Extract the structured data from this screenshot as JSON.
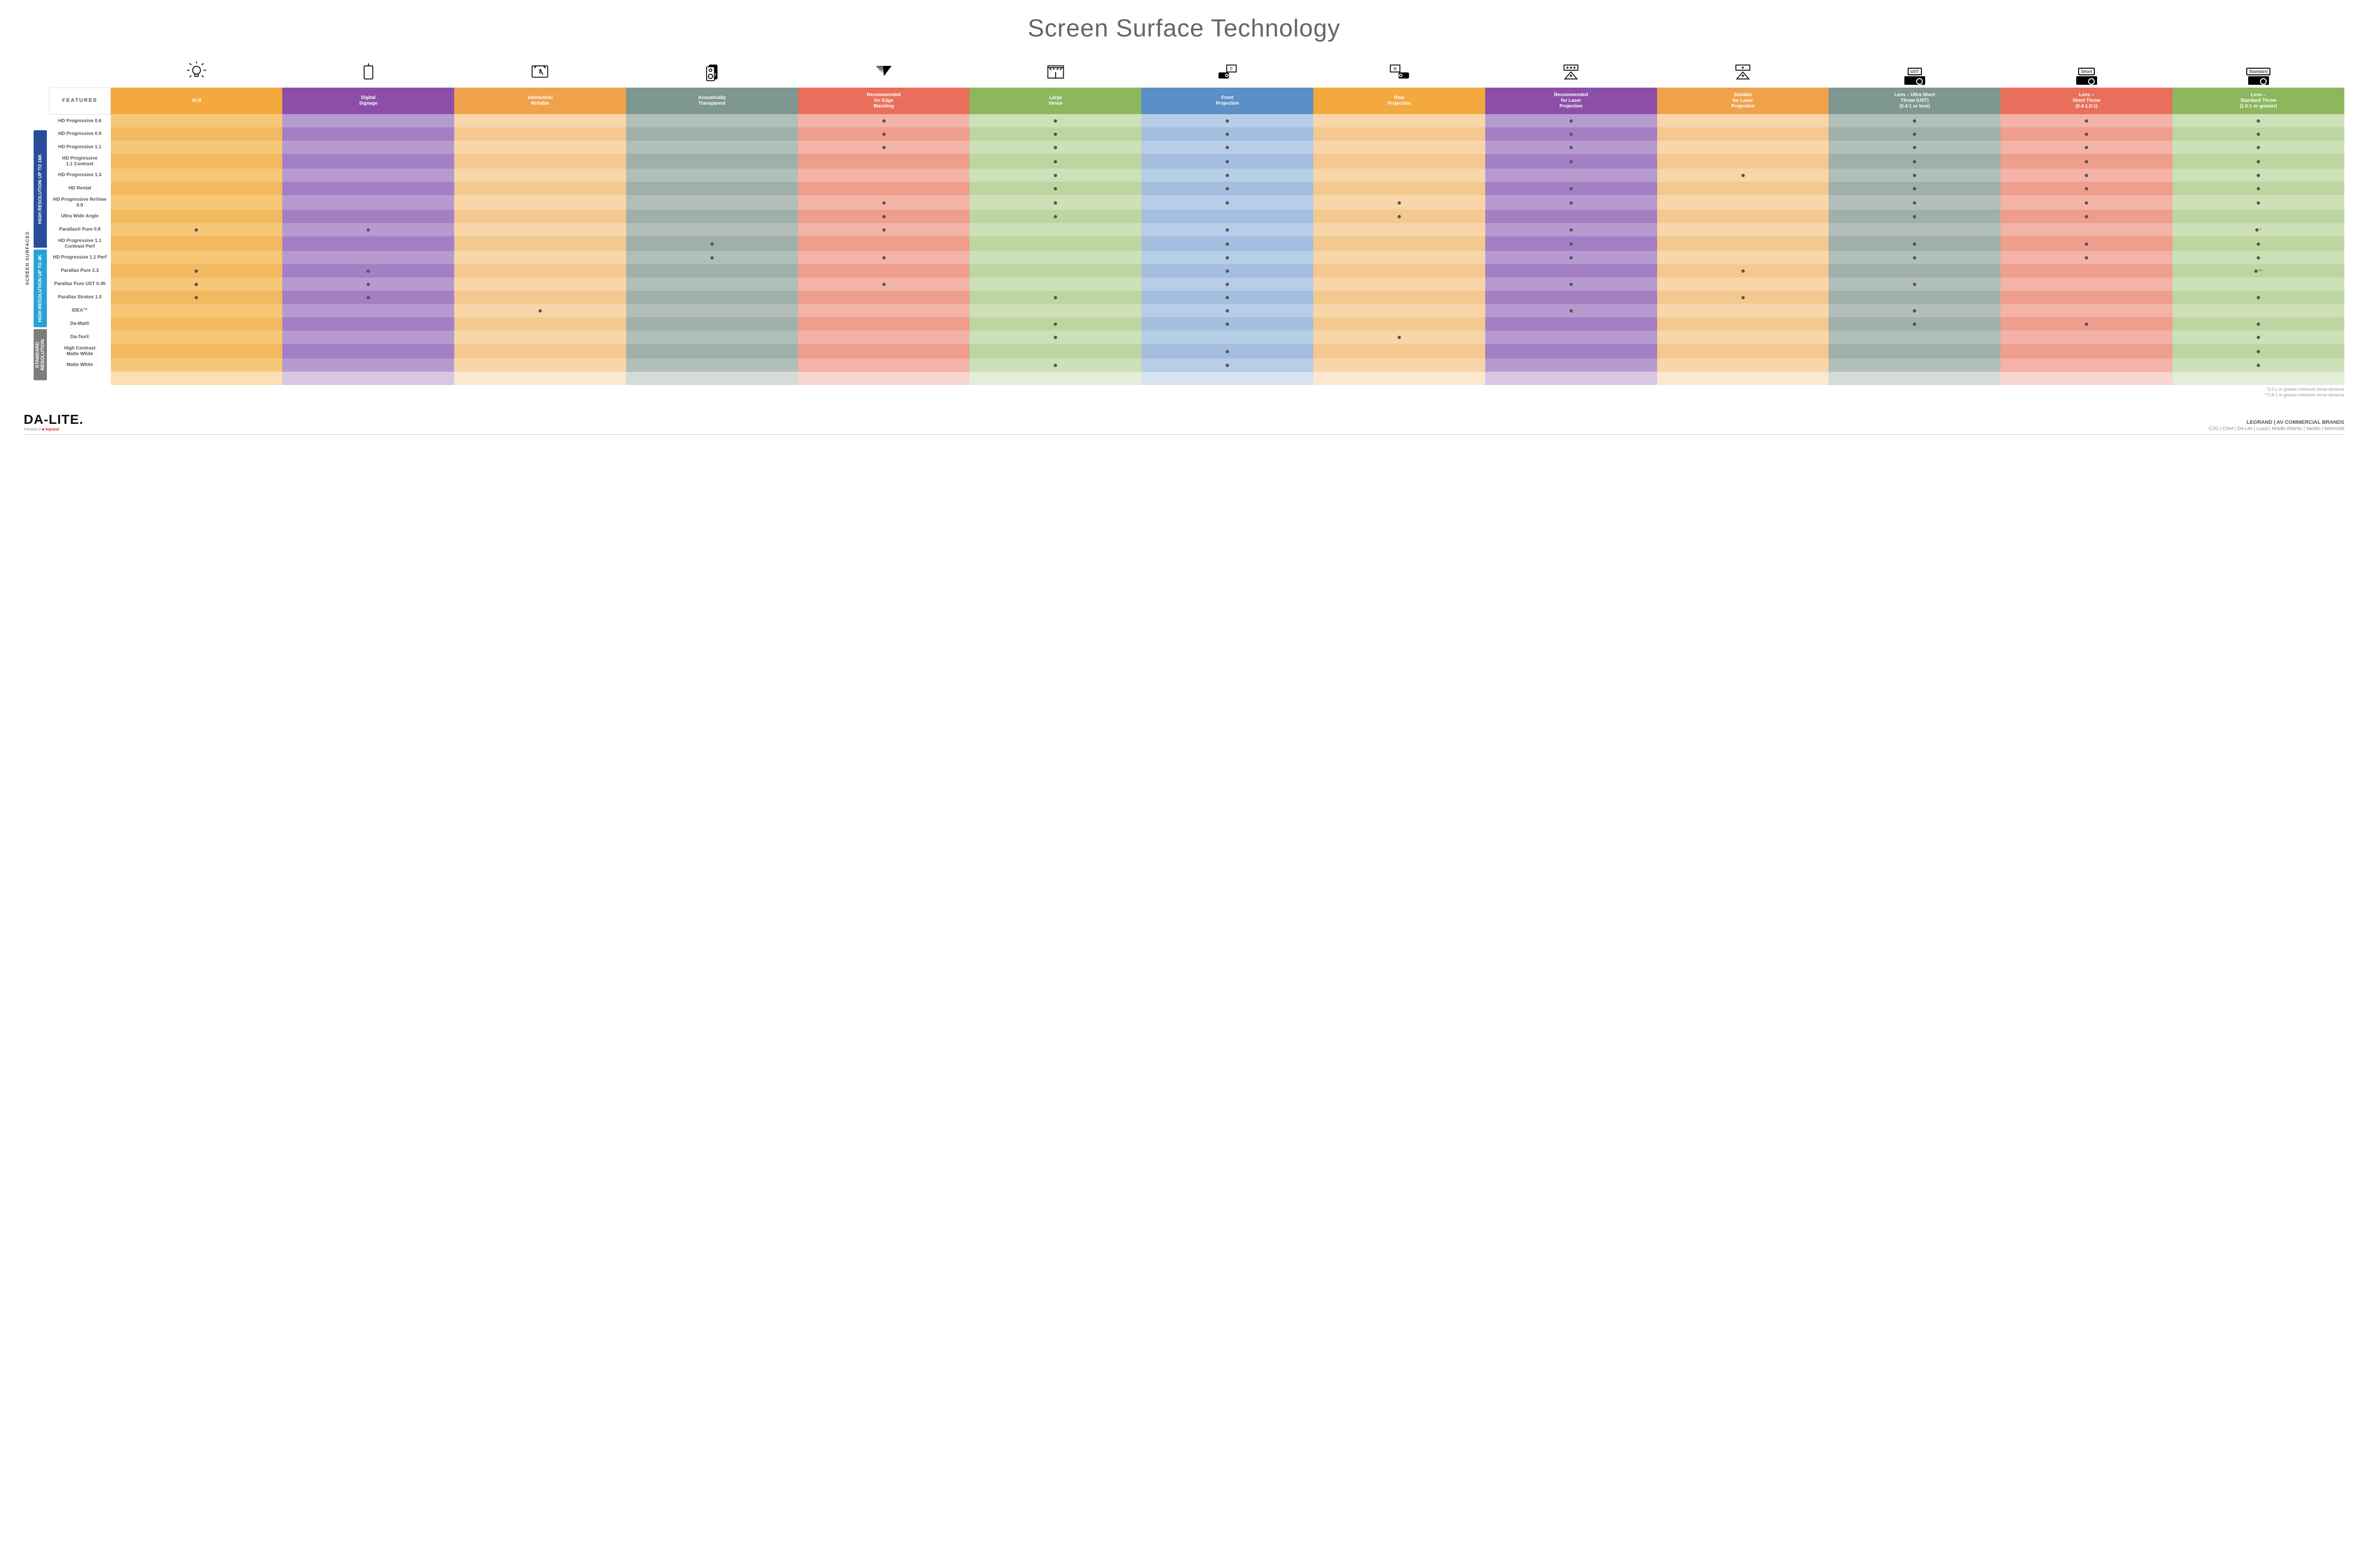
{
  "title": "Screen Surface Technology",
  "columns": [
    {
      "key": "alr",
      "label": "ALR",
      "colors": [
        "#f7c778",
        "#f3b95e"
      ],
      "header": "#f3a93e",
      "icon": "bulb"
    },
    {
      "key": "signage",
      "label": "Digital\nSignage",
      "colors": [
        "#b79bd0",
        "#a47fc4"
      ],
      "header": "#8c4fa7",
      "icon": "signage"
    },
    {
      "key": "writable",
      "label": "Interactive/\nWritable",
      "colors": [
        "#f8d6a9",
        "#f4c98f"
      ],
      "header": "#f0a24a",
      "icon": "touch"
    },
    {
      "key": "acoustic",
      "label": "Acoustically\nTransparent",
      "colors": [
        "#b2beb9",
        "#9fb0a9"
      ],
      "header": "#7e9790",
      "icon": "speaker"
    },
    {
      "key": "edge",
      "label": "Recommended\nfor Edge\nBlending",
      "colors": [
        "#f3b3a7",
        "#ef9d8d"
      ],
      "header": "#e96f5c",
      "icon": "blend"
    },
    {
      "key": "large",
      "label": "Large\nVenue",
      "colors": [
        "#cde0b7",
        "#bdd6a1"
      ],
      "header": "#8cb75d",
      "icon": "venue"
    },
    {
      "key": "front",
      "label": "Front\nProjection",
      "colors": [
        "#b8cde7",
        "#a3bedf"
      ],
      "header": "#5a8fc7",
      "icon": "front"
    },
    {
      "key": "rear",
      "label": "Rear\nProjection",
      "colors": [
        "#f8d6a9",
        "#f4c98f"
      ],
      "header": "#f3a93e",
      "icon": "rear"
    },
    {
      "key": "reclaser",
      "label": "Recommended\nfor Laser\nProjection",
      "colors": [
        "#b79bd0",
        "#a47fc4"
      ],
      "header": "#8c4fa7",
      "icon": "laser3"
    },
    {
      "key": "suitlaser",
      "label": "Suitable\nfor Laser\nProjection",
      "colors": [
        "#f8d6a9",
        "#f4c98f"
      ],
      "header": "#f0a24a",
      "icon": "laser1"
    },
    {
      "key": "ust",
      "label": "Lens – Ultra Short\nThrow (UST)\n(0.4:1 or less)",
      "colors": [
        "#b2beb9",
        "#9fb0a9"
      ],
      "header": "#7e9790",
      "icon": "proj",
      "proj": "UST"
    },
    {
      "key": "short",
      "label": "Lens –\nShort Throw\n(0.4-1.0:1)",
      "colors": [
        "#f3b3a7",
        "#ef9d8d"
      ],
      "header": "#e96f5c",
      "icon": "proj",
      "proj": "Short"
    },
    {
      "key": "std",
      "label": "Lens –\nStandard Throw\n(1.0:1 or greater)",
      "colors": [
        "#cde0b7",
        "#bdd6a1"
      ],
      "header": "#8cb75d",
      "icon": "proj",
      "proj": "Standard"
    }
  ],
  "groups": [
    {
      "key": "g16k",
      "label": "HIGH RESOLUTION UP TO 16K",
      "color": "#2a4d9b",
      "rows": [
        {
          "name": "HD Progressive 0.6",
          "dots": [
            "edge",
            "large",
            "front",
            "reclaser",
            "ust",
            "short",
            "std"
          ]
        },
        {
          "name": "HD Progressive 0.9",
          "dots": [
            "edge",
            "large",
            "front",
            "reclaser",
            "ust",
            "short",
            "std"
          ]
        },
        {
          "name": "HD Progressive 1.1",
          "dots": [
            "edge",
            "large",
            "front",
            "reclaser",
            "ust",
            "short",
            "std"
          ]
        },
        {
          "name": "HD Progressive\n1.1 Contrast",
          "dots": [
            "large",
            "front",
            "reclaser",
            "ust",
            "short",
            "std"
          ]
        },
        {
          "name": "HD Progressive 1.3",
          "dots": [
            "large",
            "front",
            "suitlaser",
            "ust",
            "short",
            "std"
          ]
        },
        {
          "name": "HD Rental",
          "dots": [
            "large",
            "front",
            "reclaser",
            "ust",
            "short",
            "std"
          ]
        },
        {
          "name": "HD Progressive ReView 0.9",
          "dots": [
            "edge",
            "large",
            "front",
            "rear",
            "reclaser",
            "ust",
            "short",
            "std"
          ]
        },
        {
          "name": "Ultra Wide Angle",
          "dots": [
            "edge",
            "large",
            "rear",
            "ust",
            "short"
          ]
        },
        {
          "name": "Parallax® Pure 0.8",
          "dots": [
            "alr",
            "signage",
            "edge",
            "front",
            "reclaser"
          ],
          "std_note": "*"
        }
      ]
    },
    {
      "key": "g4k",
      "label": "HIGH RESOLUTION UP TO 4K",
      "color": "#29a3d6",
      "rows": [
        {
          "name": "HD Progressive 1.1\nContrast Perf",
          "dots": [
            "acoustic",
            "front",
            "reclaser",
            "ust",
            "short",
            "std"
          ]
        },
        {
          "name": "HD Progressive 1.1 Perf",
          "dots": [
            "acoustic",
            "edge",
            "front",
            "reclaser",
            "ust",
            "short",
            "std"
          ]
        },
        {
          "name": "Parallax Pure 2.3",
          "dots": [
            "alr",
            "signage",
            "front",
            "suitlaser"
          ],
          "std_note": "**"
        },
        {
          "name": "Parallax Pure UST 0.45",
          "dots": [
            "alr",
            "signage",
            "edge",
            "front",
            "reclaser",
            "ust"
          ]
        },
        {
          "name": "Parallax Stratos 1.0",
          "dots": [
            "alr",
            "signage",
            "large",
            "front",
            "suitlaser",
            "std"
          ]
        },
        {
          "name": "IDEA™",
          "dots": [
            "writable",
            "front",
            "reclaser",
            "ust"
          ]
        }
      ]
    },
    {
      "key": "gstd",
      "label": "STANDARD\nRESOLUTION",
      "color": "#7d7d7d",
      "rows": [
        {
          "name": "Da-Mat®",
          "dots": [
            "large",
            "front",
            "ust",
            "short",
            "std"
          ]
        },
        {
          "name": "Da-Tex®",
          "dots": [
            "large",
            "rear",
            "std"
          ]
        },
        {
          "name": "High Contrast\nMatte White",
          "dots": [
            "front",
            "std"
          ]
        },
        {
          "name": "Matte White",
          "dots": [
            "large",
            "front",
            "std"
          ]
        }
      ]
    }
  ],
  "features_label": "FEATURES",
  "side_label": "SCREEN SURFACES",
  "footnote1": "*1.5:1 or greater minimum throw distance",
  "footnote2": "**1.8:1 or greater minimum throw distance",
  "footer": {
    "logo": "DA-LITE.",
    "logo_sub_prefix": "A brand of ",
    "logo_sub_brand": "legrand",
    "right_title": "LEGRAND | AV COMMERCIAL BRANDS",
    "brands": "C2G  |  Chief  |  Da-Lite  |  Luxul  |  Middle Atlantic  |  Vaddio  |  Wiremold"
  }
}
